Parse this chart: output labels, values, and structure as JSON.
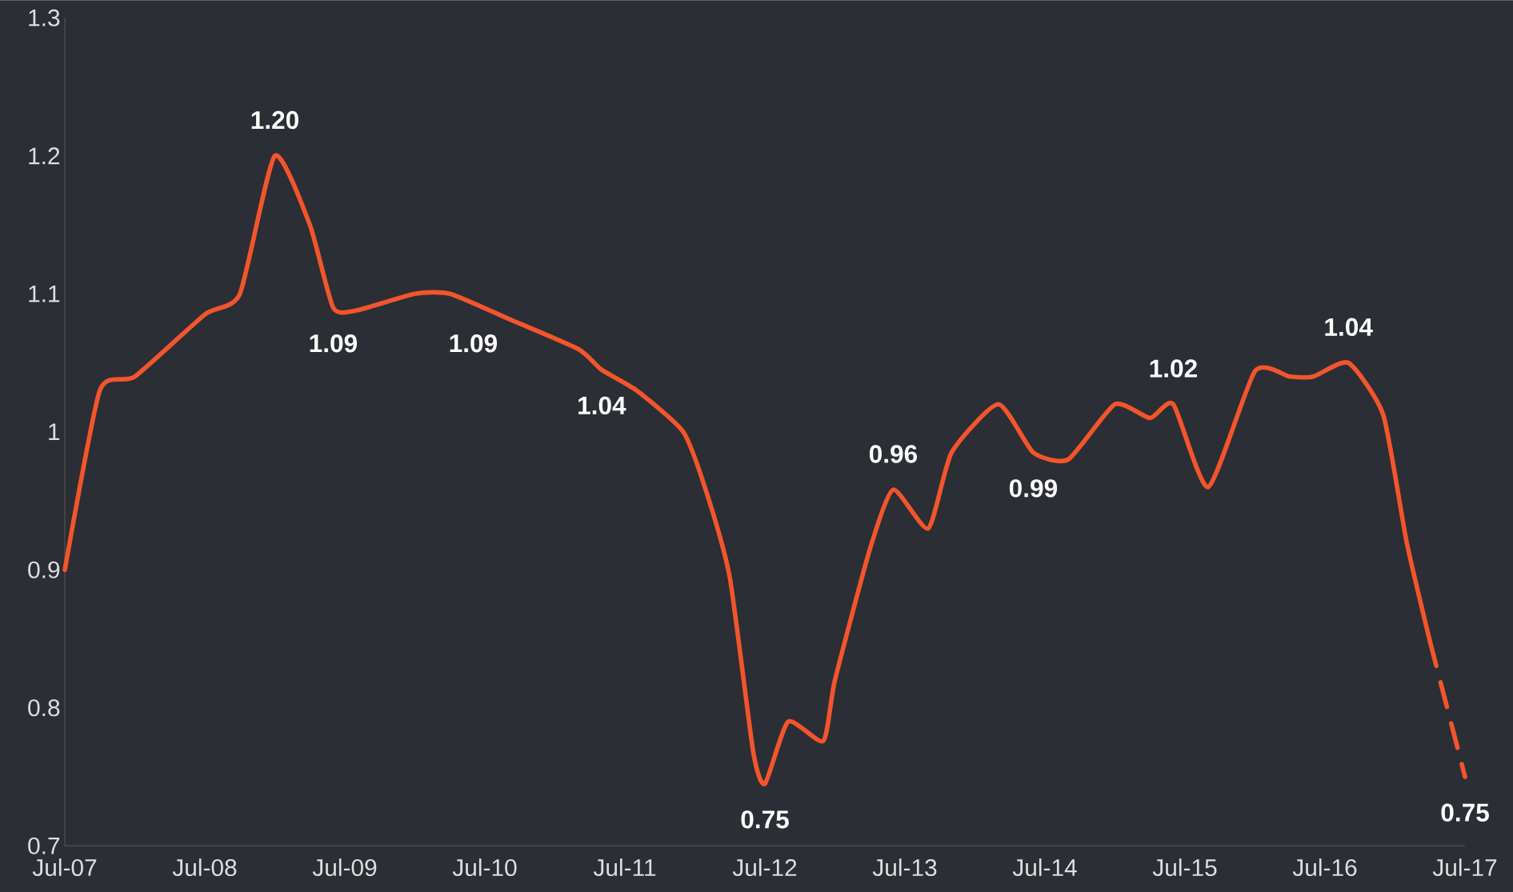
{
  "chart_data": {
    "type": "line",
    "line_style": "solid",
    "marker": "none",
    "grid": false,
    "x": [
      "2007-07",
      "2007-10",
      "2008-01",
      "2008-07",
      "2008-10",
      "2009-01",
      "2009-04",
      "2009-06",
      "2009-08",
      "2010-01",
      "2010-04",
      "2010-09",
      "2011-03",
      "2011-05",
      "2011-08",
      "2011-12",
      "2012-02",
      "2012-04",
      "2012-06",
      "2012-07",
      "2012-09",
      "2012-12",
      "2013-01",
      "2013-04",
      "2013-06",
      "2013-09",
      "2013-11",
      "2014-03",
      "2014-06",
      "2014-09",
      "2015-01",
      "2015-04",
      "2015-06",
      "2015-09",
      "2016-01",
      "2016-04",
      "2016-06",
      "2016-09",
      "2016-12",
      "2017-02",
      "2017-04"
    ],
    "series": [
      {
        "color": "#f2552c",
        "values": [
          0.9,
          1.03,
          1.04,
          1.085,
          1.1,
          1.2,
          1.15,
          1.09,
          1.088,
          1.1,
          1.1,
          1.082,
          1.06,
          1.045,
          1.03,
          1.0,
          0.956,
          0.894,
          0.768,
          0.745,
          0.79,
          0.776,
          0.82,
          0.915,
          0.958,
          0.93,
          0.985,
          1.02,
          0.985,
          0.98,
          1.02,
          1.01,
          1.02,
          0.96,
          1.044,
          1.04,
          1.04,
          1.05,
          1.012,
          0.92,
          0.848
        ]
      },
      {
        "color": "#f2552c",
        "line_style": "dashed",
        "x": [
          "2017-04",
          "2017-07"
        ],
        "values": [
          0.848,
          0.75
        ]
      }
    ],
    "xlim": [
      "2007-07",
      "2017-07"
    ],
    "xticks": [
      {
        "value": "2007-07",
        "label": "Jul-07"
      },
      {
        "value": "2008-07",
        "label": "Jul-08"
      },
      {
        "value": "2009-07",
        "label": "Jul-09"
      },
      {
        "value": "2010-07",
        "label": "Jul-10"
      },
      {
        "value": "2011-07",
        "label": "Jul-11"
      },
      {
        "value": "2012-07",
        "label": "Jul-12"
      },
      {
        "value": "2013-07",
        "label": "Jul-13"
      },
      {
        "value": "2014-07",
        "label": "Jul-14"
      },
      {
        "value": "2015-07",
        "label": "Jul-15"
      },
      {
        "value": "2016-07",
        "label": "Jul-16"
      },
      {
        "value": "2017-07",
        "label": "Jul-17"
      }
    ],
    "ylim": [
      0.7,
      1.3
    ],
    "yticks": [
      0.7,
      0.8,
      0.9,
      1,
      1.1,
      1.2,
      1.3
    ],
    "annotations": [
      {
        "text": "1.20",
        "x": "2009-01",
        "y": 1.2
      },
      {
        "text": "1.09",
        "x": "2009-06",
        "y": 1.09
      },
      {
        "text": "1.09",
        "x": "2010-06",
        "y": 1.09
      },
      {
        "text": "1.04",
        "x": "2011-05",
        "y": 1.045
      },
      {
        "text": "0.75",
        "x": "2012-07",
        "y": 0.745
      },
      {
        "text": "0.96",
        "x": "2013-06",
        "y": 0.958
      },
      {
        "text": "0.99",
        "x": "2014-06",
        "y": 0.985
      },
      {
        "text": "1.02",
        "x": "2015-06",
        "y": 1.02
      },
      {
        "text": "1.04",
        "x": "2016-09",
        "y": 1.05
      },
      {
        "text": "0.75",
        "x": "2017-07",
        "y": 0.75
      }
    ]
  }
}
